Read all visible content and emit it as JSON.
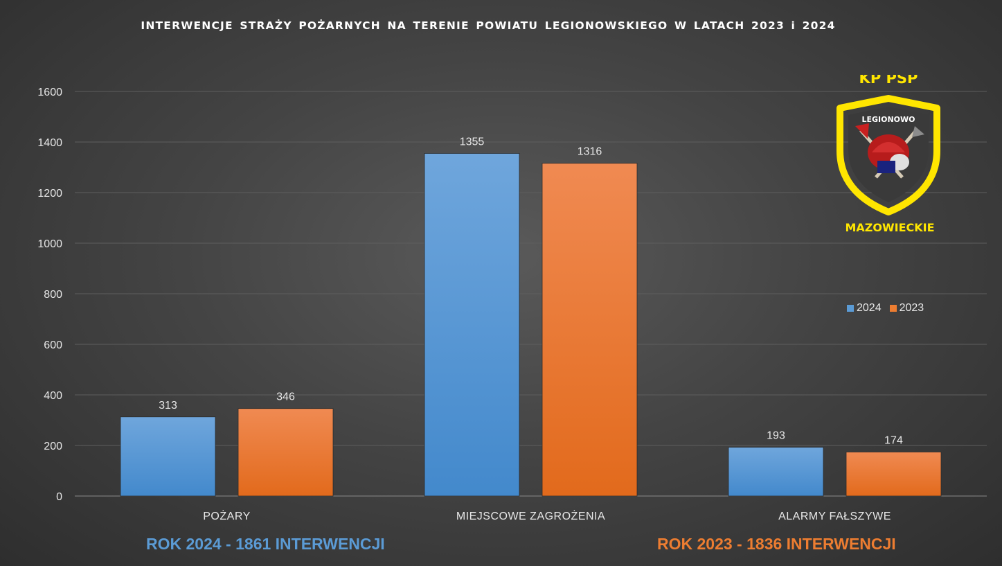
{
  "title": "INTERWENCJE  STRAŻY  POŻARNYCH  NA  TERENIE  POWIATU  LEGIONOWSKIEGO   W LATACH  2023  i  2024",
  "logo": {
    "top_text": "KP PSP",
    "middle_text": "LEGIONOWO",
    "bottom_text": "MAZOWIECKIE"
  },
  "summary": {
    "left": "ROK 2024 - 1861 INTERWENCJI",
    "right": "ROK 2023 - 1836 INTERWENCJI"
  },
  "colors": {
    "series_2024": "#5b9bd5",
    "series_2023": "#ed7d31",
    "summary_left": "#5b9bd5",
    "summary_right": "#ed7d31",
    "logo_yellow": "#ffe600"
  },
  "legend": [
    "2024",
    "2023"
  ],
  "chart_data": {
    "type": "bar",
    "categories": [
      "POŻARY",
      "MIEJSCOWE ZAGROŻENIA",
      "ALARMY FAŁSZYWE"
    ],
    "series": [
      {
        "name": "2024",
        "values": [
          313,
          1355,
          193
        ]
      },
      {
        "name": "2023",
        "values": [
          346,
          1316,
          174
        ]
      }
    ],
    "ylim": [
      0,
      1600
    ],
    "yticks": [
      0,
      200,
      400,
      600,
      800,
      1000,
      1200,
      1400,
      1600
    ],
    "grid": true,
    "legend_position": "right"
  }
}
